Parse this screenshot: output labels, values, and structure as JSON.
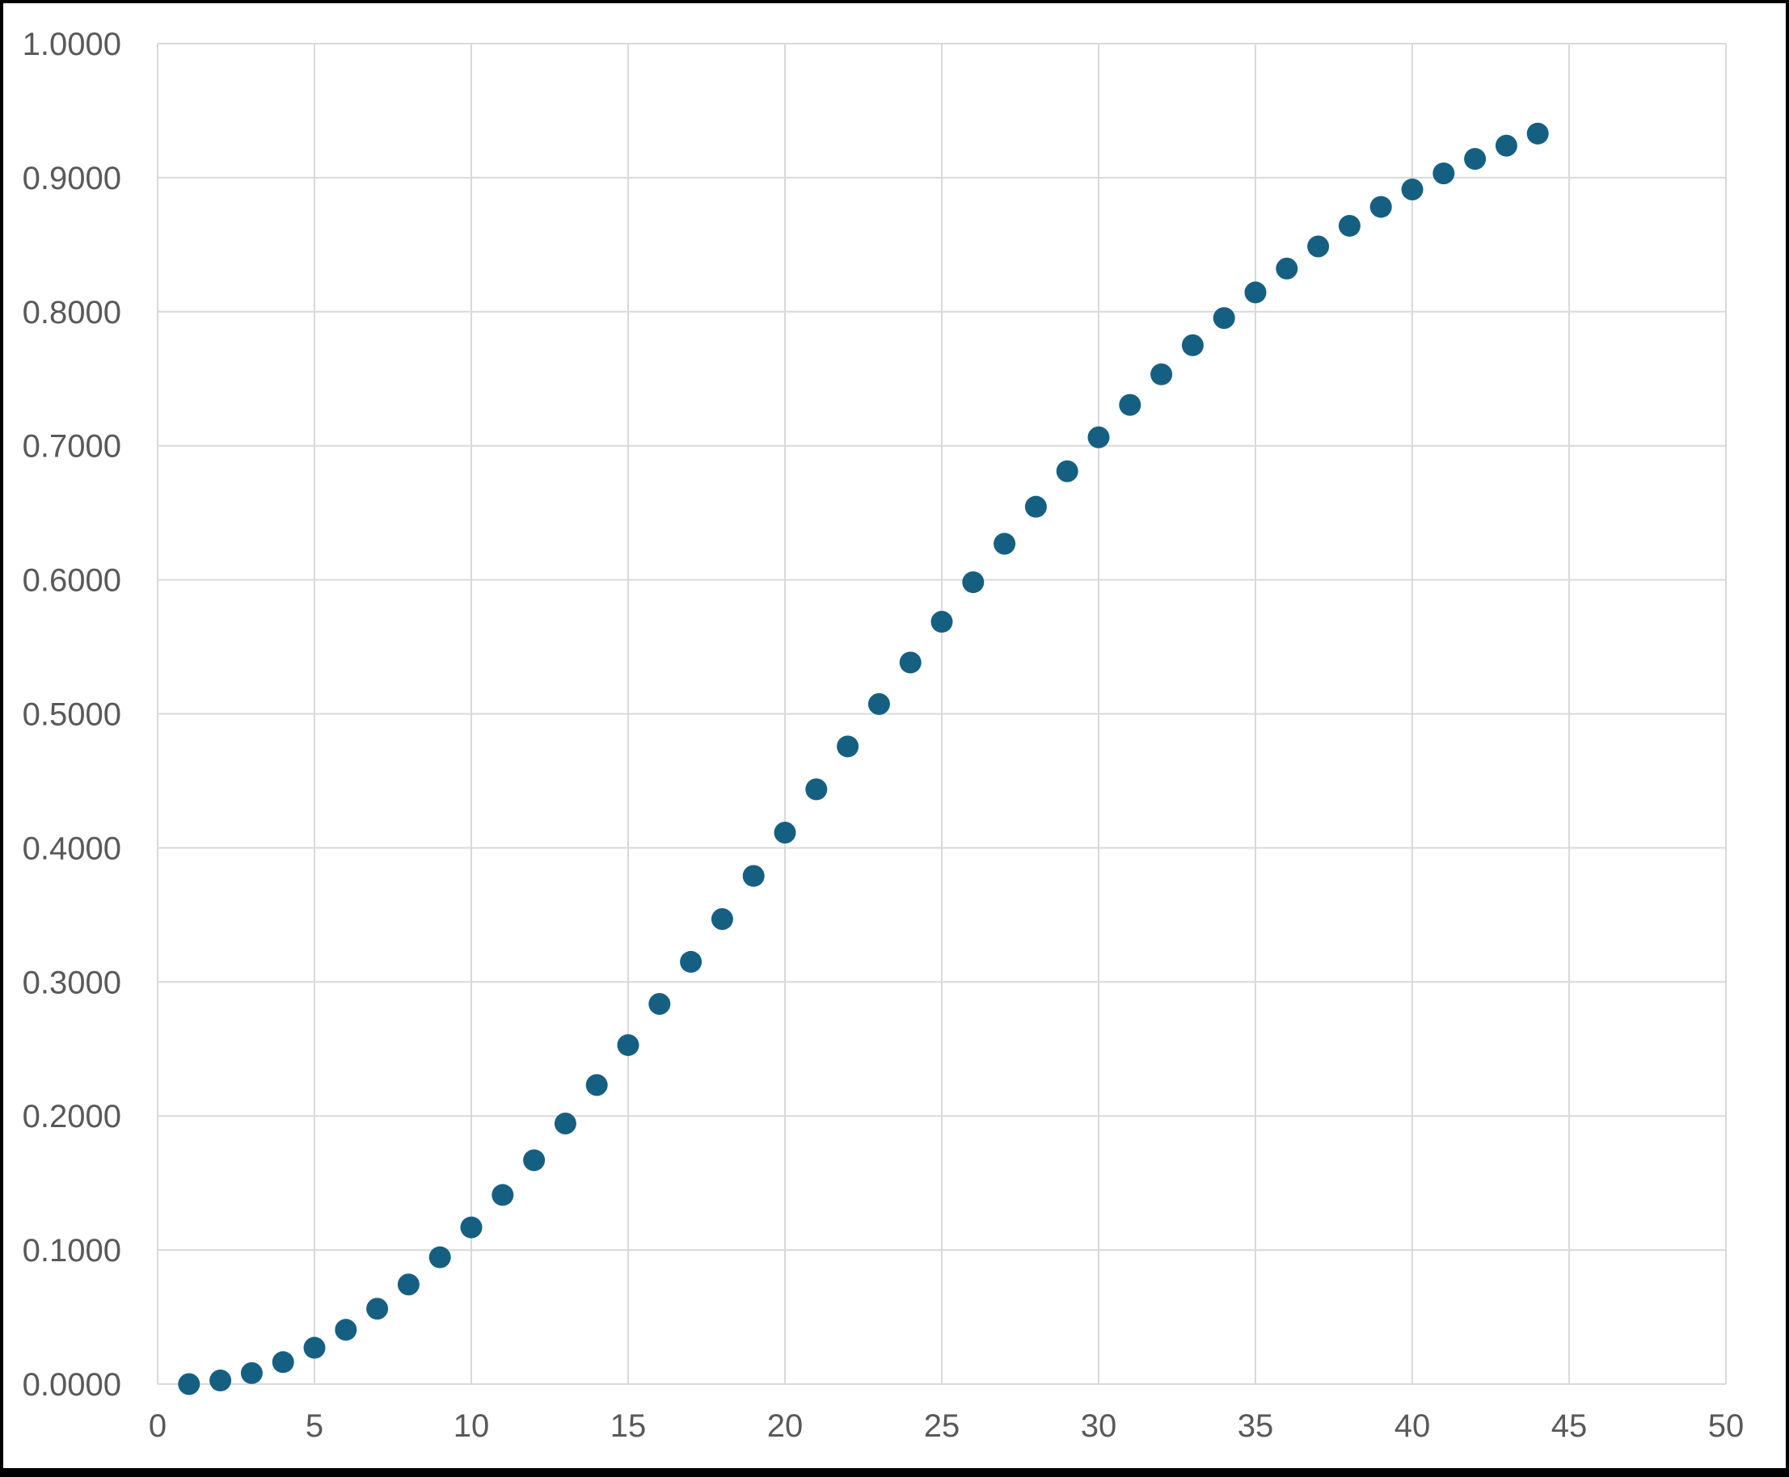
{
  "chart_data": {
    "type": "scatter",
    "title": "",
    "subtitle": "",
    "xlabel": "",
    "ylabel": "",
    "legend_position": "none",
    "grid": true,
    "xlim": [
      0,
      50
    ],
    "ylim": [
      0.0,
      1.0
    ],
    "x_ticks": [
      0,
      5,
      10,
      15,
      20,
      25,
      30,
      35,
      40,
      45,
      50
    ],
    "x_tick_labels": [
      "0",
      "5",
      "10",
      "15",
      "20",
      "25",
      "30",
      "35",
      "40",
      "45",
      "50"
    ],
    "y_ticks": [
      0.0,
      0.1,
      0.2,
      0.3,
      0.4,
      0.5,
      0.6,
      0.7,
      0.8,
      0.9,
      1.0
    ],
    "y_tick_labels": [
      "0.0000",
      "0.1000",
      "0.2000",
      "0.3000",
      "0.4000",
      "0.5000",
      "0.6000",
      "0.7000",
      "0.8000",
      "0.9000",
      "1.0000"
    ],
    "x": [
      1,
      2,
      3,
      4,
      5,
      6,
      7,
      8,
      9,
      10,
      11,
      12,
      13,
      14,
      15,
      16,
      17,
      18,
      19,
      20,
      21,
      22,
      23,
      24,
      25,
      26,
      27,
      28,
      29,
      30,
      31,
      32,
      33,
      34,
      35,
      36,
      37,
      38,
      39,
      40,
      41,
      42,
      43,
      44
    ],
    "y": [
      0.0,
      0.0027,
      0.0082,
      0.0164,
      0.0271,
      0.0405,
      0.0562,
      0.0743,
      0.0946,
      0.1169,
      0.1411,
      0.167,
      0.1944,
      0.2231,
      0.2529,
      0.2836,
      0.315,
      0.3469,
      0.3791,
      0.4114,
      0.4437,
      0.4757,
      0.5073,
      0.5383,
      0.5687,
      0.5982,
      0.6269,
      0.6545,
      0.681,
      0.7063,
      0.7305,
      0.7533,
      0.775,
      0.7953,
      0.8144,
      0.8322,
      0.8487,
      0.8641,
      0.8782,
      0.8912,
      0.9032,
      0.914,
      0.9239,
      0.9329
    ],
    "marker_color": "#156082",
    "gridline_color": "#D9D9D9",
    "tick_label_color": "#595959",
    "background_color": "#FFFFFF",
    "frame_color": "#000000"
  }
}
